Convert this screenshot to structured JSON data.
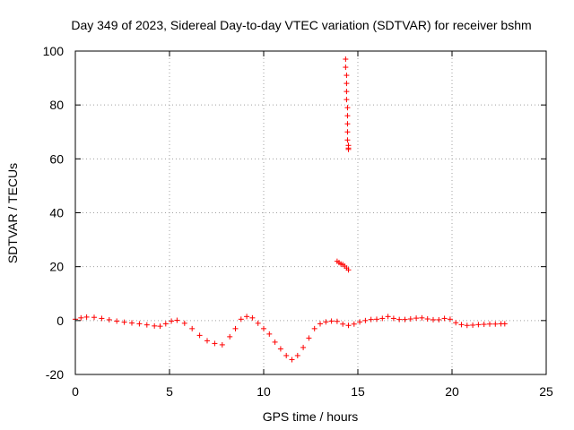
{
  "chart_data": {
    "type": "scatter",
    "title": "Day 349 of 2023, Sidereal Day-to-day VTEC variation (SDTVAR) for receiver bshm",
    "xlabel": "GPS time / hours",
    "ylabel": "SDTVAR / TECUs",
    "xlim": [
      0,
      25
    ],
    "ylim": [
      -20,
      100
    ],
    "xticks": [
      0,
      5,
      10,
      15,
      20,
      25
    ],
    "yticks": [
      -20,
      0,
      20,
      40,
      60,
      80,
      100
    ],
    "grid": true,
    "marker": "+",
    "series": [
      {
        "name": "SDTVAR",
        "color": "#ff0000",
        "x": [
          0.0,
          0.3,
          0.6,
          1.0,
          1.4,
          1.8,
          2.2,
          2.6,
          3.0,
          3.4,
          3.8,
          4.2,
          4.5,
          4.8,
          5.1,
          5.4,
          5.8,
          6.2,
          6.6,
          7.0,
          7.4,
          7.8,
          8.2,
          8.5,
          8.8,
          9.1,
          9.4,
          9.7,
          10.0,
          10.3,
          10.6,
          10.9,
          11.2,
          11.5,
          11.8,
          12.1,
          12.4,
          12.7,
          13.0,
          13.3,
          13.6,
          13.9,
          14.2,
          14.5,
          14.8,
          15.1,
          15.4,
          15.7,
          16.0,
          16.3,
          16.6,
          16.9,
          17.2,
          17.5,
          17.8,
          18.1,
          18.4,
          18.7,
          19.0,
          19.3,
          19.6,
          19.9,
          20.2,
          20.5,
          20.8,
          21.1,
          21.4,
          21.7,
          22.0,
          22.3,
          22.6,
          22.8,
          13.9,
          14.0,
          14.1,
          14.2,
          14.3,
          14.4,
          14.5,
          14.35,
          14.35,
          14.4,
          14.4,
          14.4,
          14.4,
          14.45,
          14.45,
          14.45,
          14.45,
          14.45,
          14.5,
          14.5,
          14.5
        ],
        "y": [
          0.5,
          1.0,
          1.3,
          1.2,
          0.8,
          0.3,
          -0.2,
          -0.6,
          -0.9,
          -1.2,
          -1.6,
          -2.0,
          -2.1,
          -1.2,
          -0.2,
          0.1,
          -1.0,
          -3.0,
          -5.5,
          -7.5,
          -8.5,
          -9.0,
          -6.0,
          -3.0,
          0.5,
          1.5,
          1.0,
          -1.0,
          -3.0,
          -5.0,
          -8.0,
          -10.5,
          -13.0,
          -14.5,
          -13.0,
          -10.0,
          -6.5,
          -3.0,
          -1.2,
          -0.5,
          -0.2,
          -0.3,
          -1.3,
          -1.8,
          -1.3,
          -0.5,
          0.0,
          0.4,
          0.5,
          0.8,
          1.5,
          0.8,
          0.4,
          0.4,
          0.6,
          0.9,
          1.0,
          0.6,
          0.3,
          0.3,
          0.8,
          0.5,
          -0.8,
          -1.5,
          -1.8,
          -1.7,
          -1.5,
          -1.4,
          -1.3,
          -1.3,
          -1.2,
          -1.2,
          22.0,
          21.5,
          21.0,
          20.8,
          20.2,
          19.5,
          18.8,
          97.0,
          94.0,
          91.0,
          88.0,
          85.0,
          82.0,
          79.0,
          76.0,
          73.0,
          70.0,
          67.0,
          65.0,
          64.0,
          63.5
        ]
      }
    ]
  }
}
